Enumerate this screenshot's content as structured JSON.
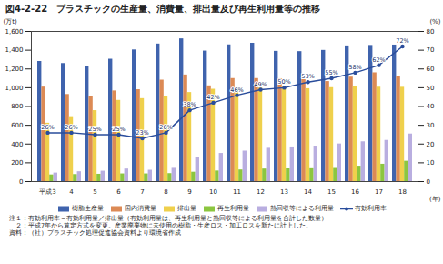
{
  "chart_data": {
    "type": "bar",
    "title": "図4-2-22　プラスチックの生産量、消費量、排出量及び再生利用量等の推移",
    "x_label": "(年)",
    "y_label": "(万t)",
    "y2_label": "(%)",
    "categories": [
      "平成3",
      "4",
      "5",
      "6",
      "7",
      "8",
      "9",
      "10",
      "11",
      "12",
      "13",
      "14",
      "15",
      "16",
      "17",
      "18"
    ],
    "series": [
      {
        "name": "樹脂生産量",
        "type": "bar",
        "color": "#3f63ad",
        "values": [
          1280,
          1258,
          1225,
          1304,
          1403,
          1466,
          1521,
          1391,
          1457,
          1474,
          1388,
          1385,
          1398,
          1446,
          1451,
          1455
        ]
      },
      {
        "name": "国内消費量",
        "type": "bar",
        "color": "#dc8a55",
        "values": [
          1007,
          928,
          902,
          966,
          979,
          1081,
          1136,
          1020,
          1098,
          1098,
          1096,
          1086,
          1066,
          1113,
          1159,
          1120
        ]
      },
      {
        "name": "排出量",
        "type": "bar",
        "color": "#efd04c",
        "values": [
          622,
          692,
          756,
          865,
          884,
          909,
          949,
          984,
          976,
          997,
          1016,
          990,
          1001,
          1013,
          1006,
          1005
        ]
      },
      {
        "name": "再生利用量",
        "type": "bar",
        "color": "#8cc63f",
        "values": [
          71,
          75,
          78,
          82,
          82,
          85,
          100,
          113,
          124,
          134,
          139,
          147,
          150,
          164,
          185,
          217
        ]
      },
      {
        "name": "熱回収等による利用量",
        "type": "bar",
        "color": "#b9aee0",
        "values": [
          91,
          105,
          111,
          134,
          121,
          151,
          261,
          300,
          325,
          355,
          369,
          378,
          401,
          424,
          439,
          507
        ]
      },
      {
        "name": "有効利用率",
        "type": "line",
        "axis": "y2",
        "color": "#2a4d9c",
        "marker": "circle",
        "data_labels": true,
        "values": [
          26,
          26,
          25,
          25,
          23,
          26,
          38,
          42,
          46,
          49,
          50,
          53,
          55,
          58,
          62,
          72
        ],
        "value_labels": [
          "26%",
          "26%",
          "25%",
          "25%",
          "23%",
          "26%",
          "38%",
          "42%",
          "46%",
          "49%",
          "50%",
          "53%",
          "55%",
          "58%",
          "62%",
          "72%"
        ]
      }
    ],
    "ylim": [
      0,
      1600
    ],
    "yticks": [
      0,
      200,
      400,
      600,
      800,
      {
        "value": 1000,
        "label": "1,000"
      },
      {
        "value": 1200,
        "label": "1,200"
      },
      {
        "value": 1400,
        "label": "1,400"
      },
      {
        "value": 1600,
        "label": "1,600"
      }
    ],
    "y2lim": [
      0,
      80
    ],
    "y2ticks": [
      0,
      10,
      20,
      30,
      40,
      50,
      60,
      70,
      80
    ],
    "grid": false,
    "legend": "bottom",
    "notes": [
      "注１：有効利用率＝有効利用量／排出量（有効利用量は、再生利用量と熱回収等による利用量を合計した数量）",
      "　２：平成7年から算定方式を変更。産業廃棄物に未使用の樹脂・生産ロス・加工ロスを新たに計上した。",
      "資料：（社）プラスチック処理促進協会資料より環境省作成"
    ]
  }
}
